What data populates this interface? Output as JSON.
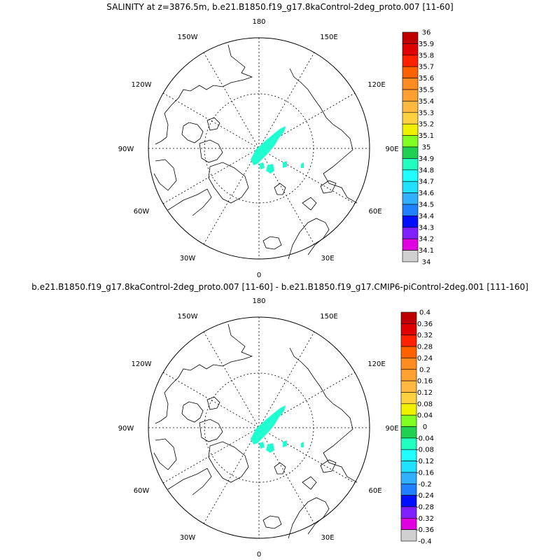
{
  "panels": [
    {
      "title": "SALINITY at z=3876.5m, b.e21.B1850.f19_g17.8kaControl-2deg_proto.007 [11-60]",
      "lon_labels": {
        "top": "180",
        "tr": "150E",
        "right_up": "120E",
        "right": "90E",
        "right_low": "60E",
        "br": "30E",
        "bottom": "0",
        "bl": "30W",
        "left_low": "60W",
        "left": "90W",
        "left_up": "120W",
        "tl": "150W"
      },
      "colorbar": {
        "ticks": [
          "36",
          "35.9",
          "35.8",
          "35.7",
          "35.6",
          "35.5",
          "35.4",
          "35.3",
          "35.2",
          "35.1",
          "35",
          "34.9",
          "34.8",
          "34.7",
          "34.6",
          "34.5",
          "34.4",
          "34.3",
          "34.2",
          "34.1",
          "34"
        ]
      }
    },
    {
      "title": "b.e21.B1850.f19_g17.8kaControl-2deg_proto.007 [11-60] - b.e21.B1850.f19_g17.CMIP6-piControl-2deg.001 [111-160]",
      "lon_labels": {
        "top": "180",
        "tr": "150E",
        "right_up": "120E",
        "right": "90E",
        "right_low": "60E",
        "br": "30E",
        "bottom": "0",
        "bl": "30W",
        "left_low": "60W",
        "left": "90W",
        "left_up": "120W",
        "tl": "150W"
      },
      "colorbar": {
        "ticks": [
          "0.4",
          "0.36",
          "0.32",
          "0.28",
          "0.24",
          "0.2",
          "0.16",
          "0.12",
          "0.08",
          "0.04",
          "0",
          "-0.04",
          "-0.08",
          "-0.12",
          "-0.16",
          "-0.2",
          "-0.24",
          "-0.28",
          "-0.32",
          "-0.36",
          "-0.4"
        ]
      }
    }
  ],
  "palette": [
    "#c00000",
    "#e00000",
    "#ff2000",
    "#ff6000",
    "#ff8c20",
    "#ffa030",
    "#ffb840",
    "#ffd040",
    "#f0f000",
    "#80ff20",
    "#20d050",
    "#20ffc0",
    "#20ffff",
    "#20e0ff",
    "#30b0ff",
    "#2080ff",
    "#0010ff",
    "#8020ff",
    "#e000e0",
    "#d0d0d0",
    "#707070"
  ],
  "fill_color": "#20ffd0"
}
